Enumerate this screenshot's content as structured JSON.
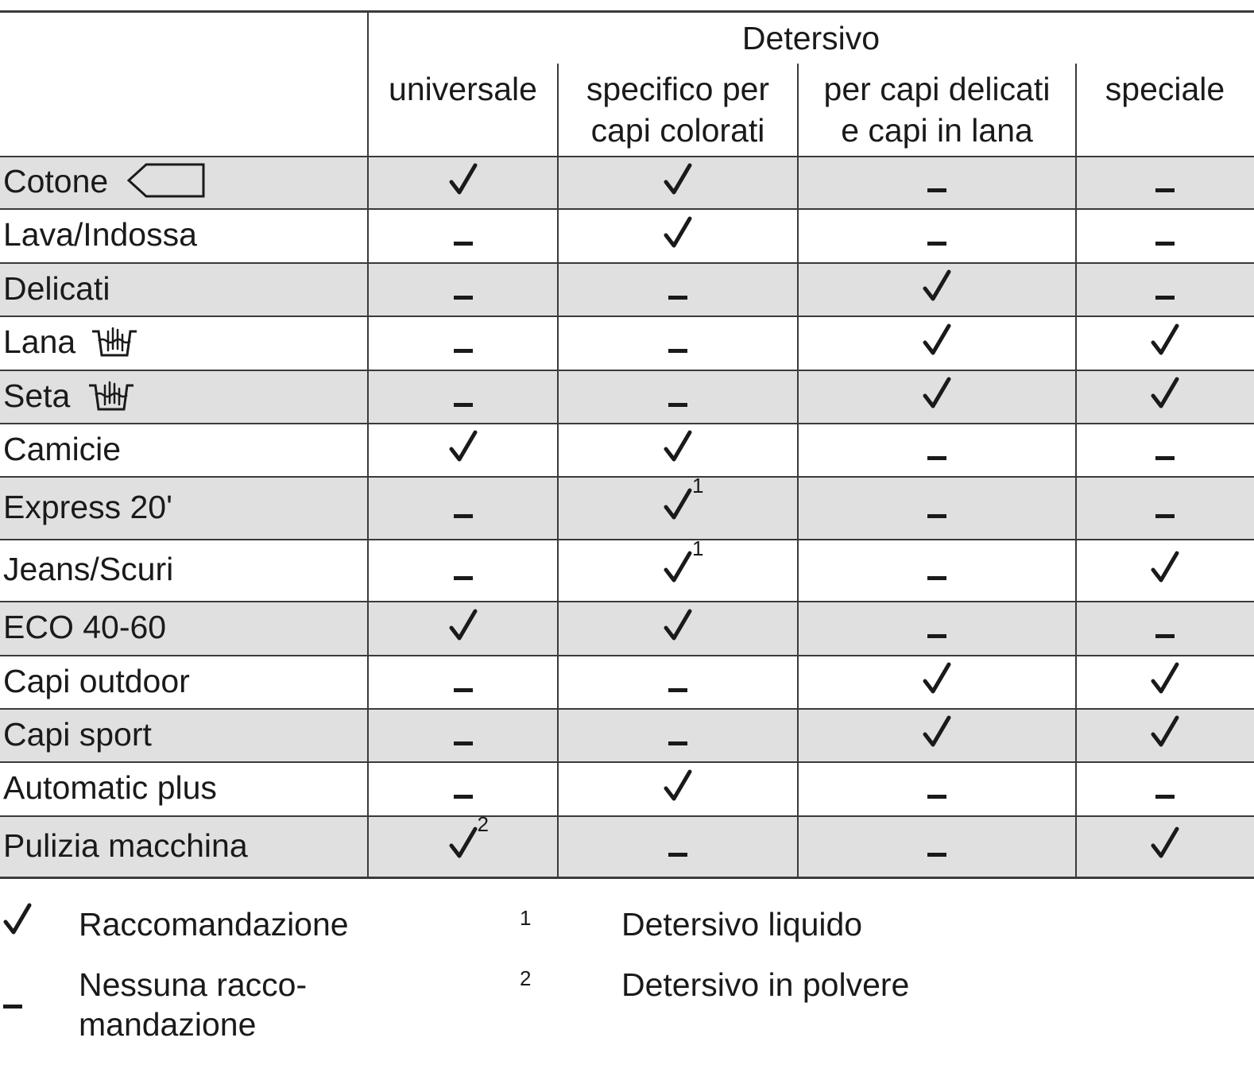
{
  "header": {
    "group_title": "Detersivo",
    "columns": [
      "universale",
      "specifico per\ncapi colorati",
      "per capi delicati\ne capi in lana",
      "speciale"
    ]
  },
  "rows": [
    {
      "label": "Cotone",
      "icon": "laundry-label-tag-icon",
      "cells": [
        {
          "m": "check"
        },
        {
          "m": "check"
        },
        {
          "m": "dash"
        },
        {
          "m": "dash"
        }
      ]
    },
    {
      "label": "Lava/Indossa",
      "cells": [
        {
          "m": "dash"
        },
        {
          "m": "check"
        },
        {
          "m": "dash"
        },
        {
          "m": "dash"
        }
      ]
    },
    {
      "label": "Delicati",
      "cells": [
        {
          "m": "dash"
        },
        {
          "m": "dash"
        },
        {
          "m": "check"
        },
        {
          "m": "dash"
        }
      ]
    },
    {
      "label": "Lana",
      "icon": "hand-wash-tub-icon",
      "cells": [
        {
          "m": "dash"
        },
        {
          "m": "dash"
        },
        {
          "m": "check"
        },
        {
          "m": "check"
        }
      ]
    },
    {
      "label": "Seta",
      "icon": "hand-wash-tub-icon",
      "cells": [
        {
          "m": "dash"
        },
        {
          "m": "dash"
        },
        {
          "m": "check"
        },
        {
          "m": "check"
        }
      ]
    },
    {
      "label": "Camicie",
      "cells": [
        {
          "m": "check"
        },
        {
          "m": "check"
        },
        {
          "m": "dash"
        },
        {
          "m": "dash"
        }
      ]
    },
    {
      "label": "Express 20'",
      "cells": [
        {
          "m": "dash"
        },
        {
          "m": "check",
          "sup": "1"
        },
        {
          "m": "dash"
        },
        {
          "m": "dash"
        }
      ]
    },
    {
      "label": "Jeans/Scuri",
      "cells": [
        {
          "m": "dash"
        },
        {
          "m": "check",
          "sup": "1"
        },
        {
          "m": "dash"
        },
        {
          "m": "check"
        }
      ]
    },
    {
      "label": "ECO 40-60",
      "cells": [
        {
          "m": "check"
        },
        {
          "m": "check"
        },
        {
          "m": "dash"
        },
        {
          "m": "dash"
        }
      ]
    },
    {
      "label": "Capi outdoor",
      "cells": [
        {
          "m": "dash"
        },
        {
          "m": "dash"
        },
        {
          "m": "check"
        },
        {
          "m": "check"
        }
      ]
    },
    {
      "label": "Capi sport",
      "cells": [
        {
          "m": "dash"
        },
        {
          "m": "dash"
        },
        {
          "m": "check"
        },
        {
          "m": "check"
        }
      ]
    },
    {
      "label": "Automatic plus",
      "cells": [
        {
          "m": "dash"
        },
        {
          "m": "check"
        },
        {
          "m": "dash"
        },
        {
          "m": "dash"
        }
      ]
    },
    {
      "label": "Pulizia macchina",
      "cells": [
        {
          "m": "check",
          "sup": "2"
        },
        {
          "m": "dash"
        },
        {
          "m": "dash"
        },
        {
          "m": "check"
        }
      ]
    }
  ],
  "legend": {
    "check_symbol": "✓",
    "check_text": "Raccomandazione",
    "dash_symbol": "–",
    "dash_text": "Nessuna racco-\nmandazione",
    "note1_mark": "1",
    "note1_text": "Detersivo liquido",
    "note2_mark": "2",
    "note2_text": "Detersivo in polvere"
  },
  "colors": {
    "shade": "#e0e0e0",
    "rule": "#3a3a3a",
    "text": "#1a1a1a"
  }
}
